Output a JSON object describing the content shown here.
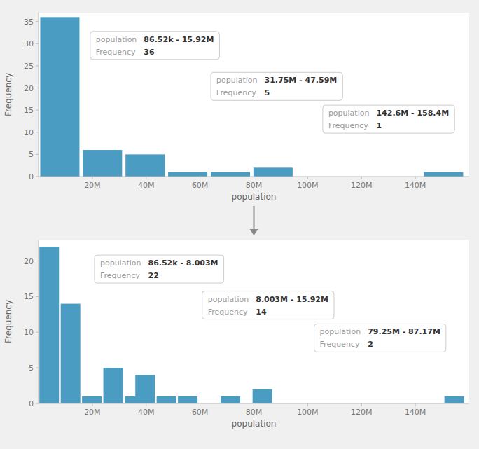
{
  "chart_data": [
    {
      "type": "histogram",
      "x": [
        0,
        15.84,
        31.68,
        47.52,
        63.36,
        79.2,
        95.04,
        142.56
      ],
      "bin_width": 15.84,
      "values": [
        36,
        6,
        5,
        1,
        1,
        2,
        0,
        1
      ],
      "color": "#4a9cc2",
      "xlabel": "population",
      "ylabel": "Frequency",
      "xlim": [
        0,
        160
      ],
      "ylim": [
        0,
        37
      ],
      "xticks": [
        {
          "value": 20,
          "label": "20M"
        },
        {
          "value": 40,
          "label": "40M"
        },
        {
          "value": 60,
          "label": "60M"
        },
        {
          "value": 80,
          "label": "80M"
        },
        {
          "value": 100,
          "label": "100M"
        },
        {
          "value": 120,
          "label": "120M"
        },
        {
          "value": 140,
          "label": "140M"
        }
      ],
      "yticks": [
        0,
        5,
        10,
        15,
        20,
        25,
        30,
        35
      ],
      "grid": false,
      "annotations": [
        {
          "label": "population",
          "value": "86.52k - 15.92M",
          "label2": "Frequency",
          "value2": "36"
        },
        {
          "label": "population",
          "value": "31.75M - 47.59M",
          "label2": "Frequency",
          "value2": "5"
        },
        {
          "label": "population",
          "value": "142.6M - 158.4M",
          "label2": "Frequency",
          "value2": "1"
        }
      ]
    },
    {
      "type": "histogram",
      "x": [
        0,
        7.92,
        15.84,
        23.76,
        31.68,
        35.64,
        43.56,
        51.48,
        59.4,
        67.32,
        79.2,
        87.12,
        95.04,
        102.96,
        110.88,
        118.8,
        126.72,
        134.64,
        142.56,
        150.48
      ],
      "bin_width": 7.92,
      "values": [
        22,
        14,
        1,
        5,
        1,
        4,
        1,
        1,
        0,
        1,
        2,
        0,
        0,
        0,
        0,
        0,
        0,
        0,
        0,
        1
      ],
      "color": "#4a9cc2",
      "xlabel": "population",
      "ylabel": "Frequency",
      "xlim": [
        0,
        160
      ],
      "ylim": [
        0,
        23
      ],
      "xticks": [
        {
          "value": 20,
          "label": "20M"
        },
        {
          "value": 40,
          "label": "40M"
        },
        {
          "value": 60,
          "label": "60M"
        },
        {
          "value": 80,
          "label": "80M"
        },
        {
          "value": 100,
          "label": "100M"
        },
        {
          "value": 120,
          "label": "120M"
        },
        {
          "value": 140,
          "label": "140M"
        }
      ],
      "yticks": [
        0,
        5,
        10,
        15,
        20
      ],
      "grid": false,
      "annotations": [
        {
          "label": "population",
          "value": "86.52k - 8.003M",
          "label2": "Frequency",
          "value2": "22"
        },
        {
          "label": "population",
          "value": "8.003M - 15.92M",
          "label2": "Frequency",
          "value2": "14"
        },
        {
          "label": "population",
          "value": "79.25M - 87.17M",
          "label2": "Frequency",
          "value2": "2"
        }
      ]
    }
  ]
}
